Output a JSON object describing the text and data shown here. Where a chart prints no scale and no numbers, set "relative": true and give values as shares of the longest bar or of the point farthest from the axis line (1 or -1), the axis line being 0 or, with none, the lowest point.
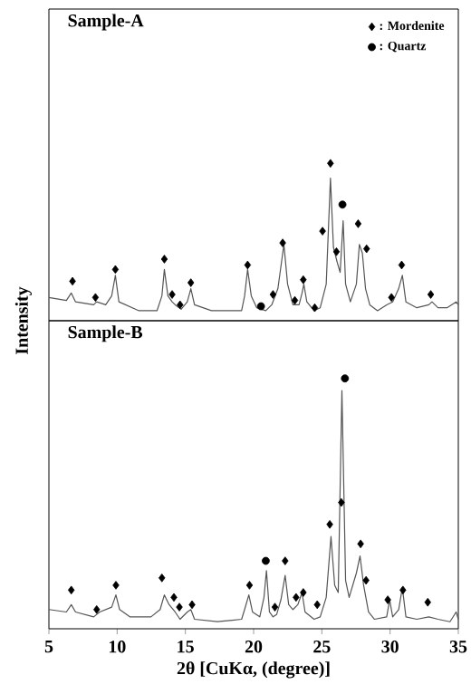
{
  "chart_data": [
    {
      "type": "line",
      "title": "Sample-A",
      "relative": true,
      "xlim": [
        5,
        35
      ],
      "tick_labels": false,
      "legend": "top right",
      "series": [
        {
          "color": "#555555",
          "x": [
            5.0,
            6.28,
            6.64,
            6.95,
            8.28,
            8.5,
            9.16,
            9.6,
            9.87,
            10.13,
            11.6,
            12.92,
            13.28,
            13.46,
            13.72,
            14.03,
            14.25,
            14.69,
            15.14,
            15.4,
            15.67,
            16.91,
            19.12,
            19.34,
            19.56,
            19.83,
            20.23,
            20.89,
            21.33,
            21.78,
            22.22,
            22.49,
            22.88,
            23.33,
            23.55,
            23.68,
            23.9,
            24.43,
            24.88,
            25.32,
            25.63,
            25.85,
            26.12,
            26.34,
            26.56,
            26.74,
            27.09,
            27.53,
            27.75,
            27.97,
            28.2,
            28.51,
            29.08,
            29.75,
            30.19,
            30.63,
            30.9,
            31.16,
            31.96,
            32.84,
            33.07,
            33.51,
            34.17,
            34.84,
            35.0
          ],
          "values": [
            0.09,
            0.07,
            0.12,
            0.06,
            0.04,
            0.06,
            0.04,
            0.1,
            0.24,
            0.06,
            0,
            0,
            0.1,
            0.28,
            0.1,
            0.06,
            0.04,
            0.01,
            0.06,
            0.15,
            0.04,
            0,
            0,
            0.1,
            0.28,
            0.1,
            0.02,
            0,
            0.04,
            0.15,
            0.45,
            0.18,
            0.04,
            0.04,
            0.12,
            0.18,
            0.06,
            0,
            0.02,
            0.18,
            0.9,
            0.43,
            0.33,
            0.26,
            0.61,
            0.18,
            0.06,
            0.18,
            0.45,
            0.39,
            0.15,
            0.04,
            0,
            0.04,
            0.06,
            0.15,
            0.24,
            0.06,
            0.02,
            0.04,
            0.06,
            0.02,
            0.02,
            0.06,
            0.04
          ]
        },
        {
          "name": ": Mordenite",
          "type": "scatter",
          "marker": "diamond",
          "color": "#000000",
          "x": [
            6.73,
            8.41,
            9.87,
            13.46,
            14.03,
            14.61,
            15.4,
            19.56,
            21.42,
            22.13,
            23.02,
            23.64,
            24.48,
            25.05,
            25.63,
            26.07,
            27.66,
            28.28,
            30.1,
            30.85,
            32.98
          ],
          "values": [
            0.2,
            0.09,
            0.28,
            0.35,
            0.11,
            0.04,
            0.19,
            0.31,
            0.11,
            0.46,
            0.07,
            0.21,
            0.02,
            0.54,
            1,
            0.4,
            0.59,
            0.42,
            0.09,
            0.31,
            0.11
          ]
        },
        {
          "name": ": Quartz",
          "type": "scatter",
          "marker": "circle",
          "color": "#000000",
          "x": [
            20.54,
            26.51
          ],
          "values": [
            0.03,
            0.72
          ]
        }
      ]
    },
    {
      "type": "line",
      "title": "Sample-B",
      "relative": true,
      "xlabel": "2θ [CuKα, (degree)]",
      "ylabel": "Intensity",
      "xlim": [
        5,
        35
      ],
      "xticks": [
        5,
        10,
        15,
        20,
        25,
        30,
        35
      ],
      "tick_labels": "x",
      "series": [
        {
          "color": "#555555",
          "x": [
            5.0,
            6.28,
            6.64,
            6.95,
            8.28,
            8.72,
            9.6,
            9.91,
            10.18,
            10.93,
            12.48,
            13.15,
            13.46,
            13.81,
            14.25,
            14.61,
            15.14,
            15.4,
            15.67,
            17.35,
            19.12,
            19.34,
            19.65,
            19.92,
            20.45,
            20.76,
            20.94,
            21.16,
            21.42,
            21.69,
            22.0,
            22.31,
            22.57,
            22.88,
            23.24,
            23.55,
            23.77,
            24.43,
            24.88,
            25.32,
            25.67,
            25.94,
            26.2,
            26.47,
            26.74,
            27.0,
            27.53,
            27.8,
            28.06,
            28.42,
            28.86,
            29.75,
            29.97,
            30.19,
            30.63,
            30.9,
            31.16,
            31.96,
            32.84,
            33.51,
            34.39,
            34.84,
            35.0
          ],
          "values": [
            0.05,
            0.04,
            0.07,
            0.04,
            0.02,
            0.04,
            0.06,
            0.11,
            0.05,
            0.02,
            0.02,
            0.05,
            0.11,
            0.07,
            0.04,
            0.01,
            0.04,
            0.05,
            0.01,
            0,
            0.01,
            0.05,
            0.11,
            0.04,
            0.02,
            0.1,
            0.21,
            0.04,
            0.02,
            0.03,
            0.09,
            0.19,
            0.07,
            0.05,
            0.07,
            0.12,
            0.04,
            0.01,
            0.02,
            0.1,
            0.35,
            0.15,
            0.12,
            0.95,
            0.17,
            0.1,
            0.2,
            0.27,
            0.15,
            0.04,
            0.01,
            0.02,
            0.09,
            0.02,
            0.05,
            0.14,
            0.02,
            0.01,
            0.02,
            0.01,
            0,
            0.04,
            0.01
          ]
        },
        {
          "type": "scatter",
          "marker": "diamond",
          "color": "#000000",
          "x": [
            6.64,
            8.5,
            9.91,
            13.28,
            14.16,
            14.56,
            15.49,
            19.7,
            21.56,
            22.31,
            23.11,
            23.64,
            24.66,
            25.58,
            26.43,
            27.84,
            28.24,
            29.83,
            30.94,
            32.76
          ],
          "values": [
            0.13,
            0.05,
            0.15,
            0.18,
            0.1,
            0.06,
            0.07,
            0.15,
            0.06,
            0.25,
            0.1,
            0.12,
            0.07,
            0.4,
            0.49,
            0.32,
            0.17,
            0.09,
            0.13,
            0.08
          ]
        },
        {
          "type": "scatter",
          "marker": "circle",
          "color": "#000000",
          "x": [
            20.89,
            26.69
          ],
          "values": [
            0.25,
            1
          ]
        }
      ]
    }
  ]
}
